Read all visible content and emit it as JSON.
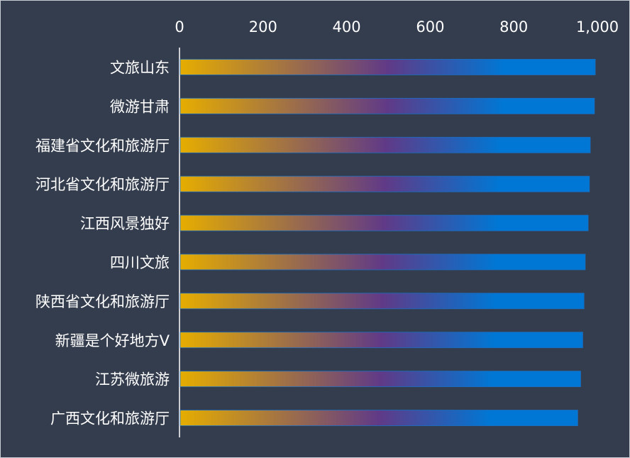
{
  "chart_data": {
    "type": "bar",
    "orientation": "horizontal",
    "title": "",
    "xlabel": "",
    "ylabel": "",
    "xlim": [
      0,
      1000
    ],
    "x_ticks": [
      "0",
      "200",
      "400",
      "600",
      "800",
      "1,000"
    ],
    "x_tick_values": [
      0,
      200,
      400,
      600,
      800,
      1000
    ],
    "x_axis_position": "top",
    "grid": false,
    "legend": "none",
    "categories": [
      "文旅山东",
      "微游甘肃",
      "福建省文化和旅游厅",
      "河北省文化和旅游厅",
      "江西风景独好",
      "四川文旅",
      "陕西省文化和旅游厅",
      "新疆是个好地方V",
      "江苏微旅游",
      "广西文化和旅游厅"
    ],
    "values": [
      995,
      993,
      983,
      981,
      978,
      971,
      968,
      965,
      960,
      953
    ],
    "bar_gradient": [
      "#e6ad00",
      "#603a87",
      "#0077d4"
    ]
  },
  "colors": {
    "background": "#343d4e",
    "text": "#ffffff",
    "axis": "#ffffff"
  }
}
